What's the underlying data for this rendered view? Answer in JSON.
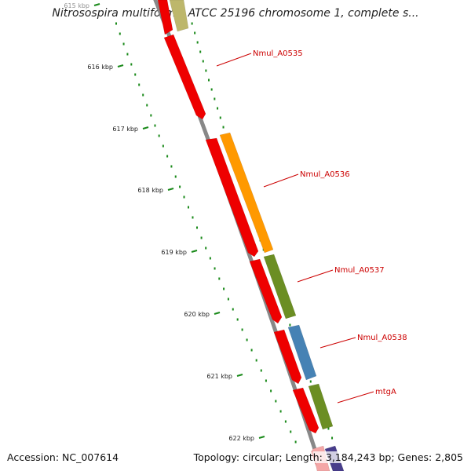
{
  "title": "Nitrosospira multiformis ATCC 25196 chromosome 1, complete s...",
  "accession": "Accession: NC_007614",
  "info": "Topology: circular; Length: 3,184,243 bp; Genes: 2,805",
  "ticks": [
    "615 kbp",
    "616 kbp",
    "617 kbp",
    "618 kbp",
    "619 kbp",
    "620 kbp",
    "621 kbp",
    "622 kbp"
  ],
  "gene_labels": [
    "Nmul_A0535",
    "Nmul_A0536",
    "Nmul_A0537",
    "Nmul_A0538",
    "mtgA"
  ],
  "colors": {
    "cds": "#ee0000",
    "orange": "#ff9900",
    "green": "#6b8e23",
    "blue": "#4682b4",
    "khaki": "#bdb76b",
    "navy": "#483d8b",
    "backbone": "#888888",
    "tick": "#1a8a1a",
    "label": "#cc0000"
  }
}
